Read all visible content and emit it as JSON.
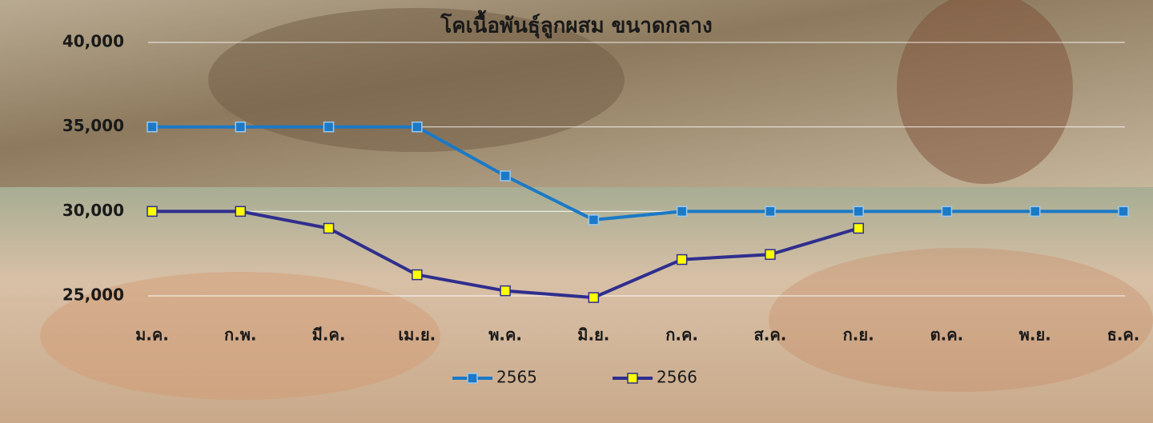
{
  "chart_data": {
    "type": "line",
    "title": "โคเนื้อพันธุ์ลูกผสม ขนาดกลาง",
    "categories": [
      "ม.ค.",
      "ก.พ.",
      "มี.ค.",
      "เม.ย.",
      "พ.ค.",
      "มิ.ย.",
      "ก.ค.",
      "ส.ค.",
      "ก.ย.",
      "ต.ค.",
      "พ.ย.",
      "ธ.ค."
    ],
    "series": [
      {
        "name": "2565",
        "color": "#1b79c6",
        "marker_color": "#1b79c6",
        "values": [
          35000,
          35000,
          35000,
          35000,
          32100,
          29500,
          30000,
          30000,
          30000,
          30000,
          30000,
          30000
        ]
      },
      {
        "name": "2566",
        "color": "#2f2e8e",
        "marker_color": "#ffff00",
        "values": [
          30000,
          30000,
          29000,
          26250,
          25300,
          24900,
          27150,
          27450,
          29000,
          null,
          null,
          null
        ]
      }
    ],
    "ylim": [
      24500,
      40000
    ],
    "yticks": [
      {
        "value": 25000,
        "label": "25,000"
      },
      {
        "value": 30000,
        "label": "30,000"
      },
      {
        "value": 35000,
        "label": "35,000"
      },
      {
        "value": 40000,
        "label": "40,000"
      }
    ],
    "grid": true,
    "legend": "bottom"
  }
}
